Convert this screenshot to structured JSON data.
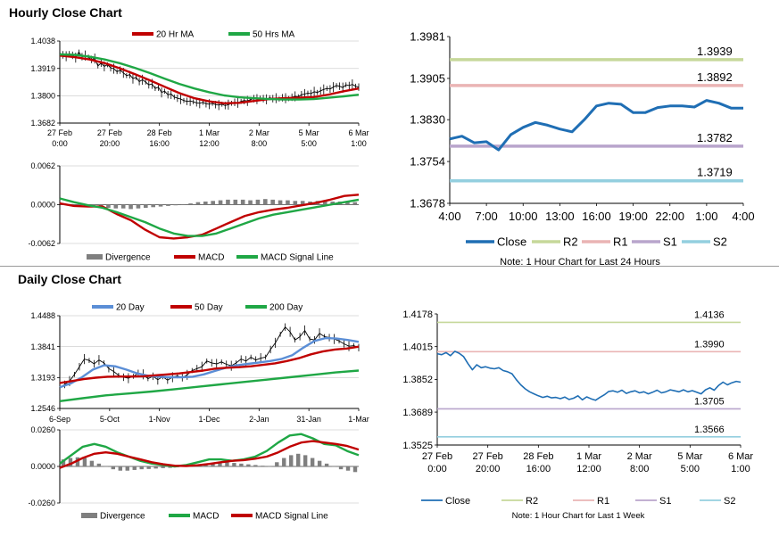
{
  "sections": {
    "hourly_title": "Hourly Close Chart",
    "daily_title": "Daily Close Chart"
  },
  "colors": {
    "close": "#1f6eb4",
    "r2": "#c6d89a",
    "r1": "#eab4b4",
    "s1": "#b9a5cc",
    "s2": "#94cfdf",
    "ma_red": "#c00000",
    "ma_green": "#1fa745",
    "ma_blue": "#5b8ed6",
    "divergence": "#7f7f7f"
  },
  "chart_data": [
    {
      "id": "hourly-price",
      "type": "line",
      "legend": [
        "20 Hr MA",
        "50 Hrs MA"
      ],
      "ytick_labels": [
        "1.4038",
        "1.3919",
        "1.3800",
        "1.3682"
      ],
      "ylim": [
        1.3682,
        1.4038
      ],
      "xtick_labels": [
        [
          "27 Feb",
          "0:00"
        ],
        [
          "27 Feb",
          "20:00"
        ],
        [
          "28 Feb",
          "16:00"
        ],
        [
          "1 Mar",
          "12:00"
        ],
        [
          "2 Mar",
          "8:00"
        ],
        [
          "5 Mar",
          "5:00"
        ],
        [
          "6 Mar",
          "1:00"
        ]
      ],
      "series": [
        {
          "name": "Close",
          "style": "ohlc",
          "values": [
            1.3985,
            1.3978,
            1.3972,
            1.3984,
            1.3976,
            1.3966,
            1.399,
            1.397,
            1.3975,
            1.3968,
            1.3958,
            1.3962,
            1.393,
            1.3942,
            1.3928,
            1.3935,
            1.3922,
            1.3918,
            1.3905,
            1.3912,
            1.39,
            1.3888,
            1.3892,
            1.3875,
            1.388,
            1.3862,
            1.387,
            1.386,
            1.3848,
            1.3852,
            1.3832,
            1.3838,
            1.3815,
            1.382,
            1.3805,
            1.3808,
            1.3795,
            1.379,
            1.3786,
            1.378,
            1.3776,
            1.3778,
            1.3774,
            1.377,
            1.3768,
            1.3772,
            1.3766,
            1.3764,
            1.3768,
            1.3762,
            1.376,
            1.3764,
            1.3758,
            1.3762,
            1.3768,
            1.3772,
            1.377,
            1.3776,
            1.378,
            1.3778,
            1.3784,
            1.3788,
            1.3786,
            1.379,
            1.3788,
            1.3785,
            1.3792,
            1.3788,
            1.379,
            1.3786,
            1.3792,
            1.379,
            1.3788,
            1.3794,
            1.3798,
            1.3796,
            1.3805,
            1.3808,
            1.3812,
            1.381,
            1.3818,
            1.3815,
            1.3822,
            1.3828,
            1.3832,
            1.383,
            1.3838,
            1.3845,
            1.3842,
            1.3836,
            1.3848,
            1.3845,
            1.385,
            1.3842,
            1.3838
          ]
        },
        {
          "name": "20 Hr MA",
          "color": "#c00000",
          "values": [
            1.3975,
            1.3968,
            1.3958,
            1.3942,
            1.392,
            1.3895,
            1.3868,
            1.384,
            1.3812,
            1.379,
            1.3776,
            1.3768,
            1.377,
            1.3778,
            1.3786,
            1.379,
            1.3792,
            1.3795,
            1.3806,
            1.382,
            1.3832
          ]
        },
        {
          "name": "50 Hrs MA",
          "color": "#1fa745",
          "values": [
            1.398,
            1.3978,
            1.397,
            1.3958,
            1.3942,
            1.3922,
            1.39,
            1.3875,
            1.3852,
            1.3832,
            1.3816,
            1.3802,
            1.3794,
            1.379,
            1.3786,
            1.3784,
            1.3784,
            1.3786,
            1.3792,
            1.3798,
            1.3805
          ]
        }
      ]
    },
    {
      "id": "hourly-macd",
      "type": "line",
      "legend": [
        "Divergence",
        "MACD",
        "MACD Signal Line"
      ],
      "ytick_labels": [
        "0.0062",
        "0.0000",
        "-0.0062"
      ],
      "ylim": [
        -0.0062,
        0.0062
      ],
      "series": [
        {
          "name": "Divergence",
          "style": "histogram",
          "values": [
            0.0002,
            0.0001,
            0.0,
            -0.0002,
            -0.0003,
            -0.0004,
            -0.0005,
            -0.0006,
            -0.0006,
            -0.0007,
            -0.0006,
            -0.0005,
            -0.0004,
            -0.0003,
            -0.0002,
            -0.0001,
            0.0,
            0.0002,
            0.0004,
            0.0005,
            0.0006,
            0.0007,
            0.0008,
            0.0008,
            0.0008,
            0.0007,
            0.0008,
            0.0009,
            0.0008,
            0.0007,
            0.0007,
            0.0006,
            0.0006,
            0.0005,
            0.0006,
            0.0006,
            0.0005,
            0.0005,
            0.0004,
            0.0004
          ]
        },
        {
          "name": "MACD",
          "color": "#c00000",
          "values": [
            0.0002,
            -0.0002,
            -0.0003,
            -0.0003,
            -0.0015,
            -0.0025,
            -0.004,
            -0.0052,
            -0.0054,
            -0.0052,
            -0.0048,
            -0.0038,
            -0.0028,
            -0.0018,
            -0.0012,
            -0.0008,
            -0.0005,
            -0.0001,
            0.0003,
            0.0008,
            0.0014,
            0.0016
          ]
        },
        {
          "name": "MACD Signal Line",
          "color": "#1fa745",
          "values": [
            0.001,
            0.0004,
            -0.0001,
            -0.0005,
            -0.0012,
            -0.002,
            -0.0028,
            -0.0038,
            -0.0046,
            -0.005,
            -0.005,
            -0.0046,
            -0.0038,
            -0.003,
            -0.0022,
            -0.0016,
            -0.0012,
            -0.0008,
            -0.0004,
            0.0,
            0.0004,
            0.0008
          ]
        }
      ]
    },
    {
      "id": "hourly-pivot",
      "type": "line",
      "ytick_labels": [
        "1.3981",
        "1.3905",
        "1.3830",
        "1.3754",
        "1.3678"
      ],
      "ylim": [
        1.3678,
        1.3981
      ],
      "xtick_labels": [
        "4:00",
        "7:00",
        "10:00",
        "13:00",
        "16:00",
        "19:00",
        "22:00",
        "1:00",
        "4:00"
      ],
      "levels": [
        {
          "name": "R2",
          "value": 1.3939,
          "label": "1.3939",
          "color": "#c6d89a"
        },
        {
          "name": "R1",
          "value": 1.3892,
          "label": "1.3892",
          "color": "#eab4b4"
        },
        {
          "name": "S1",
          "value": 1.3782,
          "label": "1.3782",
          "color": "#b9a5cc"
        },
        {
          "name": "S2",
          "value": 1.3719,
          "label": "1.3719",
          "color": "#94cfdf"
        }
      ],
      "series": [
        {
          "name": "Close",
          "color": "#1f6eb4",
          "values": [
            1.3795,
            1.38,
            1.3788,
            1.379,
            1.3775,
            1.3803,
            1.3816,
            1.3825,
            1.382,
            1.3813,
            1.3808,
            1.383,
            1.3855,
            1.386,
            1.3858,
            1.3843,
            1.3843,
            1.3852,
            1.3855,
            1.3855,
            1.3853,
            1.3865,
            1.386,
            1.3851,
            1.3851
          ]
        }
      ],
      "legend": [
        "Close",
        "R2",
        "R1",
        "S1",
        "S2"
      ],
      "note": "Note: 1 Hour Chart for Last 24 Hours"
    },
    {
      "id": "daily-price",
      "type": "line",
      "legend": [
        "20 Day",
        "50 Day",
        "200 Day"
      ],
      "ytick_labels": [
        "1.4488",
        "1.3841",
        "1.3193",
        "1.2546"
      ],
      "ylim": [
        1.2546,
        1.4488
      ],
      "xtick_labels": [
        "6-Sep",
        "5-Oct",
        "1-Nov",
        "1-Dec",
        "2-Jan",
        "31-Jan",
        "1-Mar"
      ],
      "series": [
        {
          "name": "Close",
          "style": "ohlc",
          "values": [
            1.298,
            1.305,
            1.312,
            1.326,
            1.342,
            1.358,
            1.355,
            1.348,
            1.356,
            1.35,
            1.338,
            1.332,
            1.324,
            1.32,
            1.318,
            1.322,
            1.328,
            1.326,
            1.317,
            1.322,
            1.315,
            1.321,
            1.314,
            1.32,
            1.323,
            1.319,
            1.325,
            1.334,
            1.338,
            1.342,
            1.354,
            1.35,
            1.348,
            1.352,
            1.347,
            1.344,
            1.35,
            1.358,
            1.354,
            1.362,
            1.356,
            1.36,
            1.362,
            1.378,
            1.392,
            1.41,
            1.425,
            1.415,
            1.398,
            1.405,
            1.418,
            1.4,
            1.398,
            1.412,
            1.405,
            1.403,
            1.4,
            1.396,
            1.39,
            1.385,
            1.386,
            1.382
          ]
        },
        {
          "name": "20 Day",
          "color": "#5b8ed6",
          "values": [
            1.299,
            1.307,
            1.32,
            1.336,
            1.345,
            1.343,
            1.336,
            1.328,
            1.323,
            1.321,
            1.32,
            1.32,
            1.321,
            1.326,
            1.333,
            1.34,
            1.345,
            1.348,
            1.351,
            1.354,
            1.358,
            1.366,
            1.382,
            1.396,
            1.402,
            1.401,
            1.398,
            1.394
          ]
        },
        {
          "name": "50 Day",
          "color": "#c00000",
          "values": [
            1.308,
            1.312,
            1.316,
            1.319,
            1.321,
            1.3215,
            1.3215,
            1.322,
            1.324,
            1.326,
            1.328,
            1.331,
            1.334,
            1.338,
            1.34,
            1.341,
            1.343,
            1.346,
            1.349,
            1.354,
            1.36,
            1.368,
            1.374,
            1.378,
            1.38,
            1.384
          ]
        },
        {
          "name": "200 Day",
          "color": "#1fa745",
          "values": [
            1.27,
            1.276,
            1.282,
            1.286,
            1.29,
            1.295,
            1.3,
            1.305,
            1.31,
            1.315,
            1.32,
            1.325,
            1.33,
            1.334
          ]
        }
      ]
    },
    {
      "id": "daily-macd",
      "type": "line",
      "legend": [
        "Divergence",
        "MACD",
        "MACD Signal Line"
      ],
      "ytick_labels": [
        "0.0260",
        "0.0000",
        "-0.0260"
      ],
      "ylim": [
        -0.026,
        0.026
      ],
      "series": [
        {
          "name": "Divergence",
          "style": "histogram",
          "values": [
            0.005,
            0.006,
            0.0065,
            0.006,
            0.004,
            0.002,
            0.0,
            -0.002,
            -0.003,
            -0.003,
            -0.0025,
            -0.002,
            -0.0018,
            -0.0015,
            -0.0012,
            -0.001,
            -0.0005,
            0.0,
            0.001,
            0.0015,
            0.002,
            0.0025,
            0.0028,
            0.003,
            0.0025,
            0.002,
            0.0015,
            0.001,
            0.0005,
            0.0,
            0.003,
            0.006,
            0.008,
            0.009,
            0.008,
            0.006,
            0.004,
            0.002,
            0.0,
            -0.002,
            -0.003,
            -0.004
          ]
        },
        {
          "name": "MACD",
          "color": "#1fa745",
          "values": [
            0.002,
            0.008,
            0.014,
            0.016,
            0.014,
            0.01,
            0.007,
            0.004,
            0.002,
            0.001,
            0.0,
            0.001,
            0.003,
            0.005,
            0.005,
            0.004,
            0.005,
            0.007,
            0.011,
            0.017,
            0.022,
            0.023,
            0.02,
            0.016,
            0.015,
            0.011,
            0.008
          ]
        },
        {
          "name": "MACD Signal Line",
          "color": "#c00000",
          "values": [
            -0.001,
            0.002,
            0.006,
            0.009,
            0.01,
            0.009,
            0.007,
            0.005,
            0.003,
            0.0015,
            0.0005,
            0.0003,
            0.0008,
            0.0018,
            0.003,
            0.004,
            0.0045,
            0.0055,
            0.007,
            0.01,
            0.014,
            0.017,
            0.018,
            0.017,
            0.016,
            0.0145,
            0.012
          ]
        }
      ]
    },
    {
      "id": "daily-pivot",
      "type": "line",
      "ytick_labels": [
        "1.4178",
        "1.4015",
        "1.3852",
        "1.3689",
        "1.3525"
      ],
      "ylim": [
        1.3525,
        1.4178
      ],
      "xtick_labels": [
        [
          "27 Feb",
          "0:00"
        ],
        [
          "27 Feb",
          "20:00"
        ],
        [
          "28 Feb",
          "16:00"
        ],
        [
          "1 Mar",
          "12:00"
        ],
        [
          "2 Mar",
          "8:00"
        ],
        [
          "5 Mar",
          "5:00"
        ],
        [
          "6 Mar",
          "1:00"
        ]
      ],
      "levels": [
        {
          "name": "R2",
          "value": 1.4136,
          "label": "1.4136",
          "color": "#c6d89a"
        },
        {
          "name": "R1",
          "value": 1.399,
          "label": "1.3990",
          "color": "#eab4b4"
        },
        {
          "name": "S1",
          "value": 1.3705,
          "label": "1.3705",
          "color": "#b9a5cc"
        },
        {
          "name": "S2",
          "value": 1.3566,
          "label": "1.3566",
          "color": "#94cfdf"
        }
      ],
      "series": [
        {
          "name": "Close",
          "color": "#1f6eb4",
          "values": [
            1.398,
            1.3975,
            1.3985,
            1.397,
            1.3992,
            1.3982,
            1.3965,
            1.393,
            1.39,
            1.3925,
            1.391,
            1.3915,
            1.3908,
            1.3905,
            1.391,
            1.3896,
            1.389,
            1.388,
            1.385,
            1.3825,
            1.3805,
            1.379,
            1.378,
            1.377,
            1.3762,
            1.3768,
            1.376,
            1.3762,
            1.3756,
            1.3764,
            1.3752,
            1.3758,
            1.377,
            1.375,
            1.3765,
            1.3755,
            1.3748,
            1.3762,
            1.3775,
            1.3792,
            1.3795,
            1.3788,
            1.3798,
            1.3782,
            1.379,
            1.3795,
            1.3785,
            1.379,
            1.378,
            1.3788,
            1.3798,
            1.3785,
            1.379,
            1.38,
            1.3795,
            1.379,
            1.38,
            1.379,
            1.3796,
            1.3788,
            1.378,
            1.38,
            1.381,
            1.3798,
            1.3822,
            1.3838,
            1.3825,
            1.3835,
            1.3842,
            1.3838
          ]
        }
      ],
      "legend": [
        "Close",
        "R2",
        "R1",
        "S1",
        "S2"
      ],
      "note": "Note: 1 Hour Chart for Last 1 Week"
    }
  ]
}
